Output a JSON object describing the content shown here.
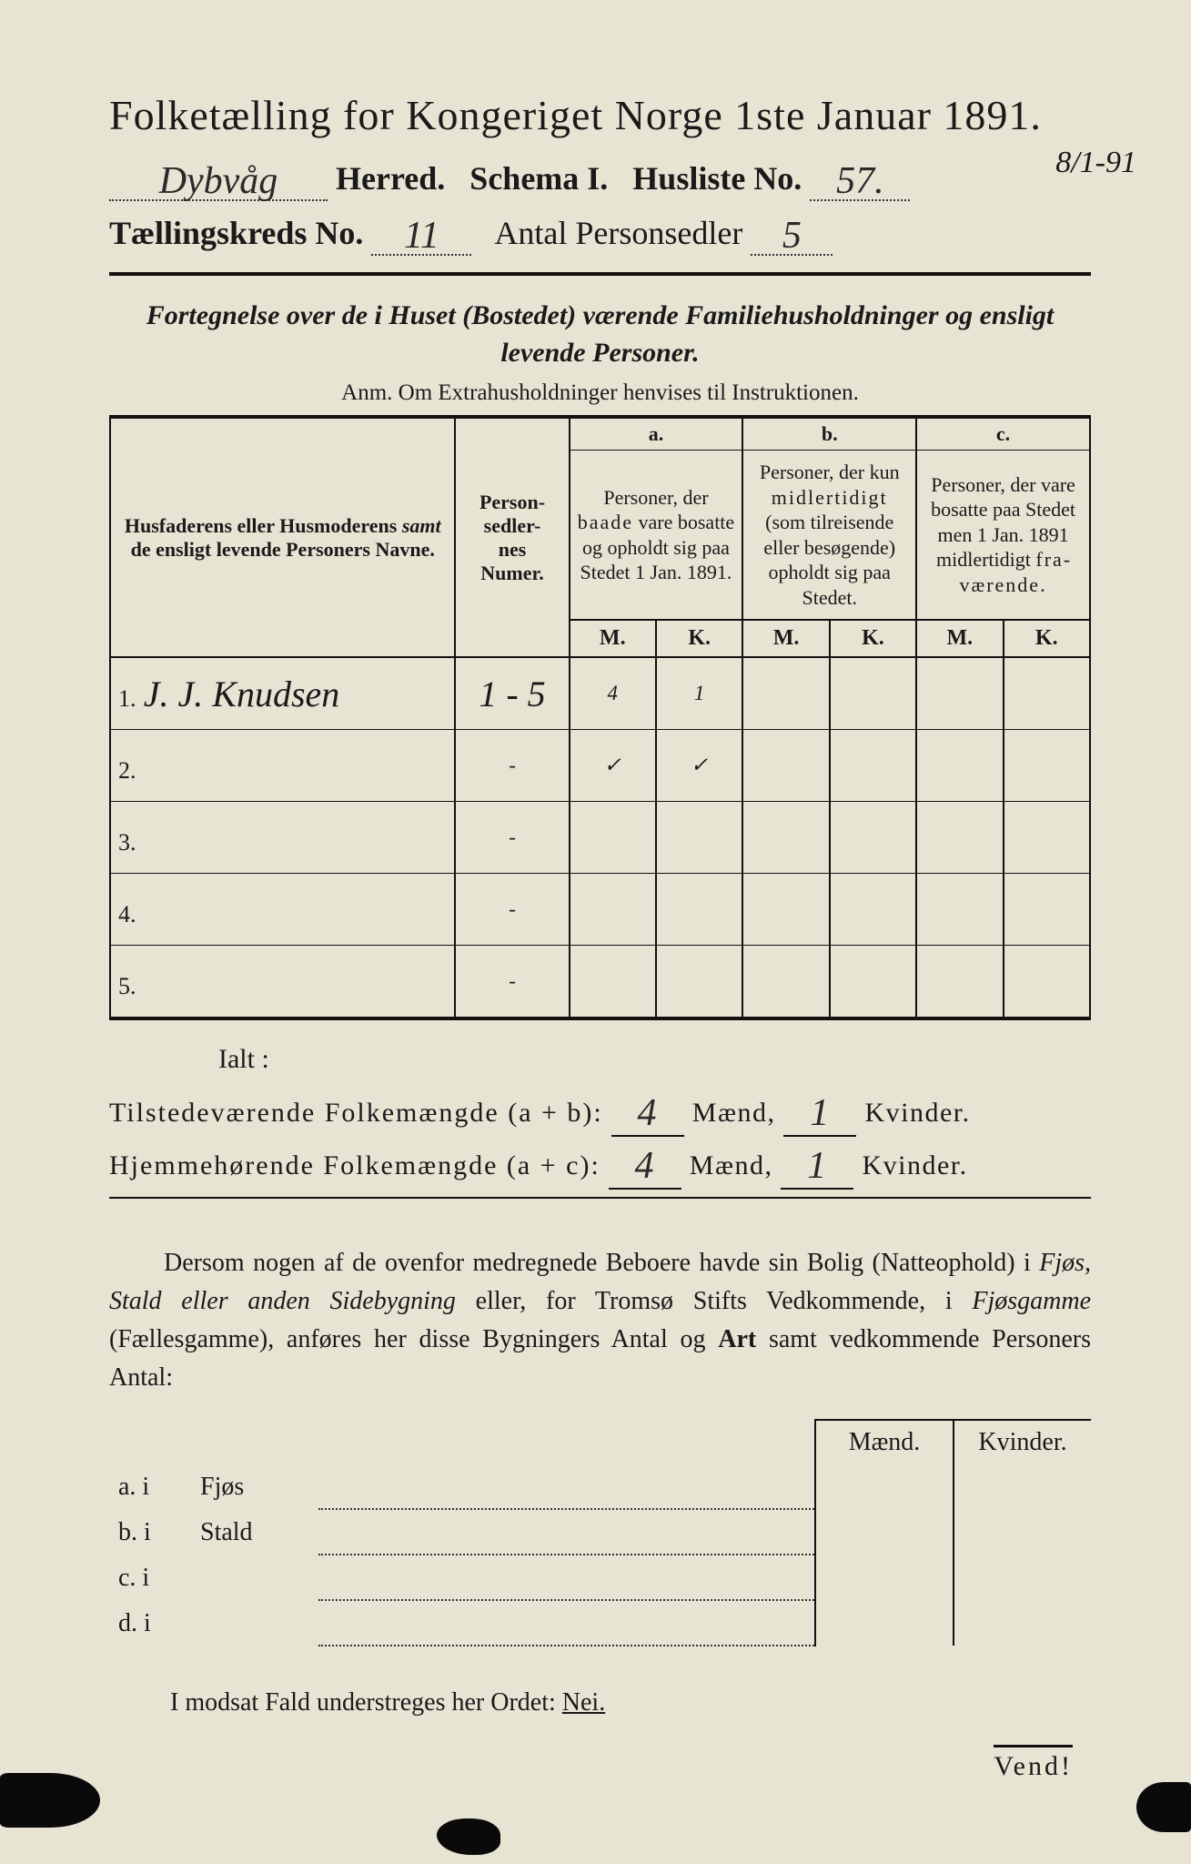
{
  "colors": {
    "paper": "#e8e4d4",
    "ink": "#1a1a1a",
    "handwriting": "#2a2a2a"
  },
  "header": {
    "title": "Folketælling for Kongeriget Norge 1ste Januar 1891.",
    "herred_value": "Dybvåg",
    "herred_label": "Herred.",
    "schema_label": "Schema I.",
    "husliste_label": "Husliste No.",
    "husliste_value": "57.",
    "date_annotation": "8/1-91",
    "kreds_label": "Tællingskreds No.",
    "kreds_value": "11",
    "personsedler_label": "Antal Personsedler",
    "personsedler_value": "5"
  },
  "subtitle": {
    "line": "Fortegnelse over de i Huset (Bostedet) værende Familiehusholdninger og ensligt levende Personer.",
    "anm": "Anm. Om Extrahusholdninger henvises til Instruktionen."
  },
  "table": {
    "col_name": "Husfaderens eller Husmoderens samt de ensligt levende Personers Navne.",
    "col_num": "Person-\nsedler-\nnes\nNumer.",
    "col_a_letter": "a.",
    "col_a": "Personer, der baade vare bosatte og opholdt sig paa Stedet 1 Jan. 1891.",
    "col_b_letter": "b.",
    "col_b": "Personer, der kun midlertidigt (som tilreisende eller besøgende) opholdt sig paa Stedet.",
    "col_c_letter": "c.",
    "col_c": "Personer, der vare bosatte paa Stedet men 1 Jan. 1891 midlertidigt fraværende.",
    "M": "M.",
    "K": "K.",
    "rows": [
      {
        "n": "1.",
        "name": "J. J. Knudsen",
        "num": "1 - 5",
        "aM": "4",
        "aK": "1",
        "bM": "",
        "bK": "",
        "cM": "",
        "cK": ""
      },
      {
        "n": "2.",
        "name": "",
        "num": "-",
        "aM": "✓",
        "aK": "✓",
        "bM": "",
        "bK": "",
        "cM": "",
        "cK": ""
      },
      {
        "n": "3.",
        "name": "",
        "num": "-",
        "aM": "",
        "aK": "",
        "bM": "",
        "bK": "",
        "cM": "",
        "cK": ""
      },
      {
        "n": "4.",
        "name": "",
        "num": "-",
        "aM": "",
        "aK": "",
        "bM": "",
        "bK": "",
        "cM": "",
        "cK": ""
      },
      {
        "n": "5.",
        "name": "",
        "num": "-",
        "aM": "",
        "aK": "",
        "bM": "",
        "bK": "",
        "cM": "",
        "cK": ""
      }
    ]
  },
  "totals": {
    "ialt": "Ialt :",
    "line1_label_a": "Tilstedeværende Folkemængde (a + b):",
    "line1_m": "4",
    "line1_k": "1",
    "line2_label_a": "Hjemmehørende Folkemængde (a + c):",
    "line2_m": "4",
    "line2_k": "1",
    "maend": "Mænd,",
    "kvinder": "Kvinder."
  },
  "para": "Dersom nogen af de ovenfor medregnede Beboere havde sin Bolig (Natteophold) i Fjøs, Stald eller anden Sidebygning eller, for Tromsø Stifts Vedkommende, i Fjøsgamme (Fællesgamme), anføres her disse Bygningers Antal og Art samt vedkommende Personers Antal:",
  "fjos": {
    "hdr_m": "Mænd.",
    "hdr_k": "Kvinder.",
    "rows": [
      {
        "lead": "a.  i",
        "label": "Fjøs"
      },
      {
        "lead": "b.  i",
        "label": "Stald"
      },
      {
        "lead": "c.  i",
        "label": ""
      },
      {
        "lead": "d.  i",
        "label": ""
      }
    ]
  },
  "nei": {
    "text_a": "I modsat Fald understreges her Ordet:",
    "word": "Nei."
  },
  "vend": "Vend!"
}
